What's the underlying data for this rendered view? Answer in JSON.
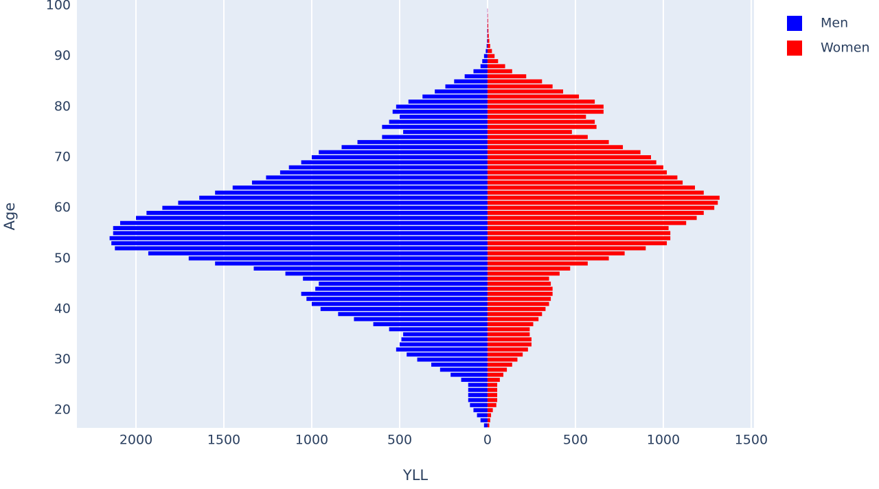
{
  "chart_data": {
    "type": "hbar",
    "x_label": "YLL",
    "y_label": "Age",
    "y": [
      17,
      18,
      19,
      20,
      21,
      22,
      23,
      24,
      25,
      26,
      27,
      28,
      29,
      30,
      31,
      32,
      33,
      34,
      35,
      36,
      37,
      38,
      39,
      40,
      41,
      42,
      43,
      44,
      45,
      46,
      47,
      48,
      49,
      50,
      51,
      52,
      53,
      54,
      55,
      56,
      57,
      58,
      59,
      60,
      61,
      62,
      63,
      64,
      65,
      66,
      67,
      68,
      69,
      70,
      71,
      72,
      73,
      74,
      75,
      76,
      77,
      78,
      79,
      80,
      81,
      82,
      83,
      84,
      85,
      86,
      87,
      88,
      89,
      90,
      91,
      92,
      93,
      94,
      95,
      96,
      97,
      98,
      99
    ],
    "series": [
      {
        "name": "Men",
        "color": "#0000ff",
        "values": [
          -20,
          -40,
          -60,
          -80,
          -100,
          -110,
          -110,
          -110,
          -110,
          -150,
          -210,
          -270,
          -320,
          -400,
          -460,
          -520,
          -500,
          -490,
          -480,
          -560,
          -650,
          -760,
          -850,
          -950,
          -1000,
          -1030,
          -1060,
          -980,
          -960,
          -1050,
          -1150,
          -1330,
          -1550,
          -1700,
          -1930,
          -2120,
          -2140,
          -2150,
          -2130,
          -2130,
          -2090,
          -2000,
          -1940,
          -1850,
          -1760,
          -1640,
          -1550,
          -1450,
          -1340,
          -1260,
          -1180,
          -1130,
          -1060,
          -1000,
          -960,
          -830,
          -740,
          -600,
          -480,
          -600,
          -560,
          -500,
          -540,
          -520,
          -450,
          -370,
          -300,
          -240,
          -190,
          -130,
          -80,
          -40,
          -30,
          -20,
          -10,
          -5,
          -3,
          -2,
          -2,
          -1,
          -1,
          -1,
          -1
        ]
      },
      {
        "name": "Women",
        "color": "#ff0000",
        "values": [
          10,
          15,
          20,
          30,
          50,
          55,
          55,
          55,
          55,
          70,
          90,
          110,
          140,
          170,
          200,
          230,
          250,
          250,
          240,
          240,
          260,
          290,
          310,
          330,
          350,
          360,
          370,
          370,
          360,
          350,
          410,
          470,
          570,
          690,
          780,
          900,
          1020,
          1040,
          1040,
          1030,
          1130,
          1190,
          1230,
          1290,
          1310,
          1320,
          1230,
          1180,
          1110,
          1080,
          1020,
          1000,
          960,
          930,
          870,
          770,
          690,
          570,
          480,
          620,
          610,
          560,
          660,
          660,
          610,
          520,
          430,
          370,
          310,
          220,
          140,
          100,
          60,
          40,
          25,
          15,
          10,
          7,
          5,
          4,
          3,
          2,
          1
        ]
      }
    ],
    "xlim": [
      -2336,
      1516
    ],
    "xticks": [
      {
        "value": -2000,
        "label": "2000"
      },
      {
        "value": -1500,
        "label": "1500"
      },
      {
        "value": -1000,
        "label": "1000"
      },
      {
        "value": -500,
        "label": "500"
      },
      0,
      500,
      1000,
      1500
    ],
    "ylim": [
      16.5,
      100
    ],
    "yticks": [
      20,
      30,
      40,
      50,
      60,
      70,
      80,
      90,
      100
    ],
    "grid": true
  }
}
